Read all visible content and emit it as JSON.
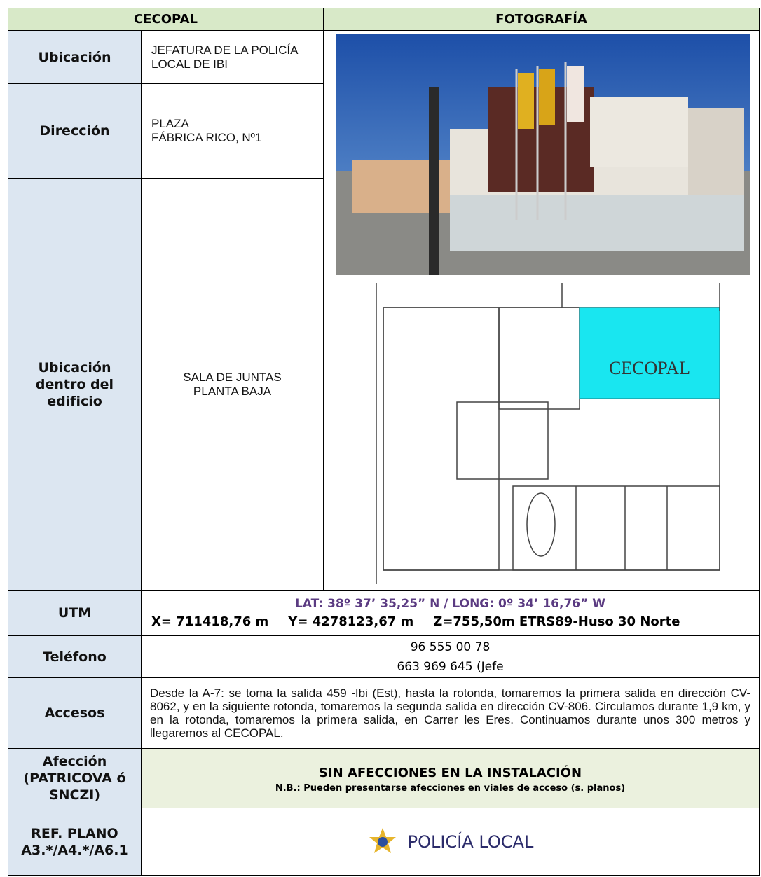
{
  "header": {
    "left": "CECOPAL",
    "right": "FOTOGRAFÍA"
  },
  "ubicacion": {
    "label": "Ubicación",
    "value": "JEFATURA DE LA POLICÍA LOCAL DE IBI"
  },
  "direccion": {
    "label": "Dirección",
    "lines": [
      "PLAZA",
      "FÁBRICA RICO, Nº1"
    ]
  },
  "ubicacion_edificio": {
    "label": "Ubicación dentro del edificio",
    "lines": [
      "SALA DE JUNTAS",
      "PLANTA BAJA"
    ]
  },
  "plan_label": "CECOPAL",
  "utm": {
    "label": "UTM",
    "latlong": "LAT: 38º 37’ 35,25” N / LONG: 0º 34’ 16,76” W",
    "x": "X= 711418,76 m",
    "y": "Y= 4278123,67 m",
    "z": "Z=755,50m ETRS89-Huso 30 Norte"
  },
  "telefono": {
    "label": "Teléfono",
    "lines": [
      "96 555 00 78",
      "663 969 645 (Jefe"
    ]
  },
  "accesos": {
    "label": "Accesos",
    "text": "Desde la A-7: se toma la salida 459 -Ibi (Est), hasta la rotonda, tomaremos la primera salida en dirección CV-8062, y en la siguiente rotonda, tomaremos la segunda salida en dirección CV-806. Circulamos durante 1,9 km, y en la rotonda, tomaremos la primera salida, en Carrer les Eres. Continuamos durante unos 300 metros y llegaremos al CECOPAL."
  },
  "afeccion": {
    "label": "Afección (PATRICOVA ó SNCZI)",
    "title": "SIN AFECCIONES EN LA INSTALACIÓN",
    "note": "N.B.: Pueden presentarse afecciones en viales de acceso (s. planos)"
  },
  "ref_plano": {
    "label": "REF. PLANO A3.*/A4.*/A6.1",
    "logo_text": "POLICÍA LOCAL"
  }
}
